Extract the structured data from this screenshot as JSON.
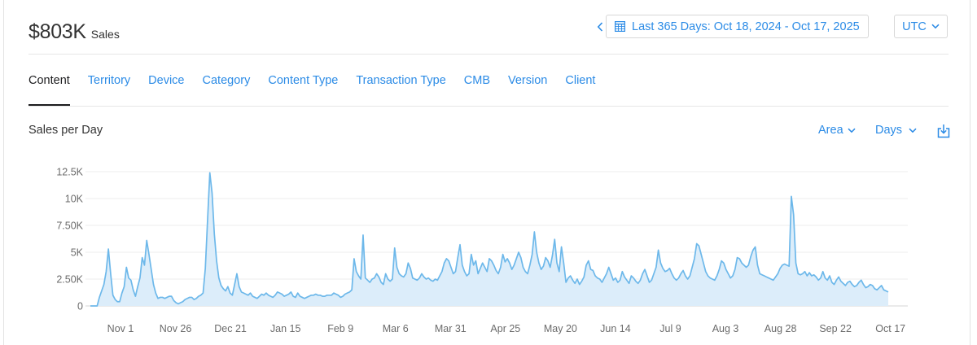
{
  "summary": {
    "total": "$803K",
    "unit": "Sales"
  },
  "date_range": {
    "label": "Last 365 Days: Oct 18, 2024 - Oct 17, 2025"
  },
  "timezone": {
    "label": "UTC"
  },
  "tabs": [
    {
      "label": "Content",
      "active": true
    },
    {
      "label": "Territory",
      "active": false
    },
    {
      "label": "Device",
      "active": false
    },
    {
      "label": "Category",
      "active": false
    },
    {
      "label": "Content Type",
      "active": false
    },
    {
      "label": "Transaction Type",
      "active": false
    },
    {
      "label": "CMB",
      "active": false
    },
    {
      "label": "Version",
      "active": false
    },
    {
      "label": "Client",
      "active": false
    }
  ],
  "chart_header": {
    "title": "Sales per Day",
    "chart_type_label": "Area",
    "granularity_label": "Days"
  },
  "icons": {
    "prev": "chevron-left-icon",
    "calendar": "calendar-icon",
    "dropdown": "chevron-down-icon",
    "download": "download-icon"
  },
  "colors": {
    "accent": "#2b8be6",
    "series_line": "#6db8ea",
    "series_fill": "#dcedfa"
  },
  "chart_data": {
    "type": "area",
    "title": "",
    "xlabel": "",
    "ylabel": "",
    "ylim": [
      0,
      12500
    ],
    "y_ticks": [
      "0",
      "2.50K",
      "5K",
      "7.50K",
      "10K",
      "12.5K"
    ],
    "x_ticks": [
      "Nov 1",
      "Nov 26",
      "Dec 21",
      "Jan 15",
      "Feb 9",
      "Mar 6",
      "Mar 31",
      "Apr 25",
      "May 20",
      "Jun 14",
      "Jul 9",
      "Aug 3",
      "Aug 28",
      "Sep 22",
      "Oct 17"
    ],
    "x_start": "Oct 18, 2024",
    "x_end": "Oct 17, 2025",
    "grid": true,
    "series": [
      {
        "name": "Sales",
        "values": [
          0,
          0,
          0,
          0,
          800,
          1400,
          2000,
          3200,
          5300,
          3000,
          1000,
          600,
          400,
          400,
          1200,
          1800,
          3600,
          2600,
          2400,
          1500,
          900,
          1800,
          2600,
          4500,
          3800,
          6100,
          4800,
          3400,
          2000,
          1200,
          700,
          800,
          800,
          700,
          800,
          900,
          900,
          500,
          300,
          200,
          300,
          400,
          600,
          700,
          800,
          800,
          600,
          700,
          900,
          1000,
          1200,
          3500,
          8000,
          12400,
          10500,
          6700,
          4200,
          2600,
          1900,
          1600,
          1400,
          1800,
          1200,
          1000,
          2000,
          3000,
          1800,
          1300,
          1200,
          1100,
          1000,
          1200,
          900,
          800,
          700,
          900,
          1100,
          1000,
          1200,
          1000,
          900,
          800,
          1000,
          1300,
          1200,
          1100,
          900,
          1000,
          1100,
          1300,
          900,
          800,
          1200,
          900,
          800,
          700,
          800,
          900,
          1000,
          1000,
          1100,
          1000,
          1000,
          900,
          900,
          1000,
          1000,
          1000,
          1200,
          1100,
          1000,
          800,
          900,
          1100,
          1200,
          1300,
          1500,
          4400,
          3200,
          2800,
          2500,
          6600,
          2600,
          2400,
          2200,
          2500,
          2600,
          3000,
          2700,
          2200,
          2000,
          3000,
          2500,
          2300,
          2500,
          5400,
          3600,
          3000,
          2800,
          2700,
          3000,
          4000,
          3500,
          2600,
          2500,
          2400,
          2600,
          3000,
          2700,
          2500,
          2600,
          2400,
          2300,
          2500,
          2400,
          2800,
          3200,
          4000,
          4400,
          4200,
          3600,
          3000,
          3200,
          4500,
          5700,
          3800,
          3200,
          2800,
          3000,
          4800,
          3800,
          4200,
          3000,
          3500,
          4000,
          3600,
          3200,
          4400,
          4200,
          3800,
          3300,
          3000,
          3600,
          4800,
          4100,
          4400,
          4000,
          3400,
          3800,
          4400,
          5000,
          4500,
          3600,
          3200,
          3000,
          3800,
          4800,
          6900,
          5000,
          4000,
          3400,
          3700,
          4500,
          4200,
          3600,
          4700,
          6200,
          4000,
          3200,
          5500,
          4000,
          2200,
          2600,
          2800,
          2400,
          2100,
          2500,
          2000,
          2300,
          2700,
          3800,
          4200,
          3400,
          3300,
          2800,
          2600,
          2500,
          2200,
          2600,
          3000,
          3600,
          3000,
          2400,
          2600,
          2200,
          2400,
          3200,
          2700,
          2400,
          2100,
          2800,
          2600,
          2300,
          2100,
          2400,
          3000,
          3400,
          2800,
          2200,
          2400,
          3000,
          3600,
          5200,
          4000,
          3500,
          3200,
          3300,
          3500,
          3000,
          2600,
          2400,
          2600,
          3000,
          3300,
          2800,
          2500,
          2800,
          3600,
          4400,
          5800,
          5600,
          4800,
          4000,
          3200,
          2800,
          2600,
          2500,
          2400,
          2800,
          3400,
          4200,
          4000,
          3400,
          3000,
          2600,
          2800,
          3400,
          4500,
          4400,
          4000,
          3800,
          3600,
          3800,
          4600,
          5200,
          5500,
          3800,
          3000,
          2900,
          2800,
          2700,
          2600,
          2500,
          2400,
          2700,
          3000,
          3500,
          3800,
          3900,
          3800,
          3700,
          10200,
          8500,
          4000,
          3000,
          2900,
          3000,
          3200,
          2800,
          3100,
          2800,
          2900,
          2700,
          2400,
          2600,
          3200,
          2600,
          2400,
          2800,
          2200,
          2000,
          2400,
          2700,
          2300,
          2100,
          1900,
          2200,
          2300,
          2000,
          1800,
          1900,
          2200,
          2400,
          2000,
          1700,
          1800,
          2000,
          1900,
          1600,
          1500,
          1700,
          1900,
          1500,
          1400,
          1300
        ]
      }
    ]
  }
}
